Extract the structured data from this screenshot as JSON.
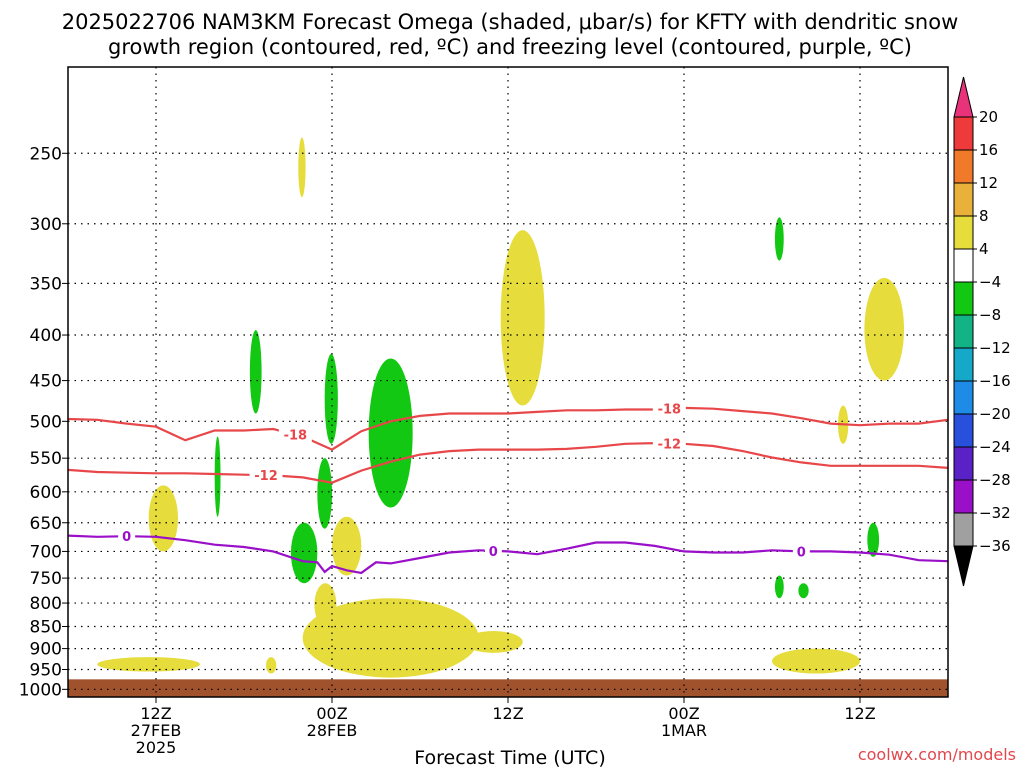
{
  "title_line1": "2025022706 NAM3KM Forecast Omega (shaded, μbar/s) for KFTY with dendritic snow",
  "title_line2": "growth region (contoured, red, ºC) and freezing level (contoured, purple, ºC)",
  "xlabel": "Forecast Time (UTC)",
  "credit": "coolwx.com/models",
  "colors": {
    "frame": "#000000",
    "grid": "#000000",
    "ground": "#a0522d",
    "dgz": "#e8474a",
    "freezing": "#9a0fc8",
    "omega_pos": "#e6dc3c",
    "omega_neg": "#12c812"
  },
  "chart_data": {
    "type": "time-height",
    "x_unit": "forecast hour from 2025-02-27 06Z",
    "xlim": [
      0,
      60
    ],
    "y_unit": "pressure (hPa)",
    "ylim": [
      1020,
      200
    ],
    "y_scale": "log",
    "grid": true,
    "yticks": [
      250,
      300,
      350,
      400,
      450,
      500,
      550,
      600,
      650,
      700,
      750,
      800,
      850,
      900,
      950,
      1000
    ],
    "xticks": [
      {
        "x": 6,
        "lines": [
          "12Z",
          "27FEB",
          "2025"
        ]
      },
      {
        "x": 18,
        "lines": [
          "00Z",
          "28FEB"
        ]
      },
      {
        "x": 30,
        "lines": [
          "12Z"
        ]
      },
      {
        "x": 42,
        "lines": [
          "00Z",
          "1MAR"
        ]
      },
      {
        "x": 54,
        "lines": [
          "12Z"
        ]
      }
    ],
    "colorbar": {
      "unit": "μbar/s",
      "labels": [
        "20",
        "16",
        "12",
        "8",
        "4",
        "−4",
        "−8",
        "−12",
        "−16",
        "−20",
        "−24",
        "−28",
        "−32",
        "−36"
      ],
      "colors": [
        "#e8337a",
        "#ee3a3a",
        "#f07a2a",
        "#e9b13a",
        "#e6dc3c",
        "#ffffff",
        "#12c812",
        "#12b486",
        "#16a8c8",
        "#1e8ce6",
        "#2850dc",
        "#5a22c6",
        "#9a0fc8",
        "#a0a0a0",
        "#000000"
      ]
    },
    "series": [
      {
        "name": "-18",
        "kind": "dgz",
        "x": [
          0,
          2,
          4,
          6,
          8,
          10,
          12,
          14,
          16,
          18,
          20,
          22,
          24,
          26,
          28,
          30,
          32,
          34,
          36,
          38,
          40,
          42,
          44,
          46,
          48,
          50,
          52,
          54,
          56,
          58,
          60
        ],
        "y": [
          497,
          498,
          503,
          507,
          525,
          512,
          512,
          510,
          520,
          538,
          513,
          500,
          493,
          490,
          490,
          490,
          488,
          486,
          486,
          485,
          485,
          483,
          484,
          487,
          490,
          496,
          503,
          505,
          503,
          503,
          498
        ],
        "labels_at": [
          15.5,
          41
        ]
      },
      {
        "name": "-12",
        "kind": "dgz",
        "x": [
          0,
          2,
          4,
          6,
          8,
          10,
          12,
          14,
          16,
          18,
          20,
          22,
          24,
          26,
          28,
          30,
          32,
          34,
          36,
          38,
          40,
          42,
          44,
          46,
          48,
          50,
          52,
          54,
          56,
          58,
          60
        ],
        "y": [
          567,
          570,
          571,
          572,
          572,
          573,
          574,
          575,
          578,
          586,
          568,
          555,
          545,
          540,
          538,
          538,
          538,
          537,
          534,
          530,
          529,
          530,
          533,
          540,
          549,
          556,
          561,
          561,
          561,
          561,
          564
        ],
        "labels_at": [
          13.5,
          41
        ]
      },
      {
        "name": "0",
        "kind": "freezing",
        "x": [
          0,
          2,
          4,
          6,
          8,
          10,
          12,
          14,
          16,
          17,
          17.5,
          18,
          19,
          20,
          21,
          22,
          24,
          26,
          28,
          30,
          32,
          34,
          36,
          38,
          40,
          42,
          44,
          46,
          48,
          50,
          52,
          54,
          56,
          58,
          60
        ],
        "y": [
          672,
          674,
          673,
          674,
          680,
          688,
          692,
          700,
          718,
          720,
          738,
          727,
          735,
          740,
          720,
          722,
          712,
          702,
          698,
          700,
          705,
          695,
          684,
          684,
          690,
          700,
          702,
          702,
          698,
          700,
          700,
          702,
          706,
          716,
          718
        ],
        "labels_at": [
          4,
          29,
          50
        ]
      }
    ],
    "omega_regions": [
      {
        "sign": "positive",
        "range": "4 to 8",
        "x": [
          15.7,
          16.2
        ],
        "p": [
          240,
          280
        ]
      },
      {
        "sign": "positive",
        "range": "4 to 8",
        "x": [
          5.5,
          7.5
        ],
        "p": [
          590,
          700
        ]
      },
      {
        "sign": "positive",
        "range": "4 to 8",
        "x": [
          2,
          9
        ],
        "p": [
          920,
          955
        ]
      },
      {
        "sign": "positive",
        "range": "4 to 8",
        "x": [
          13.5,
          14.2
        ],
        "p": [
          920,
          960
        ]
      },
      {
        "sign": "positive",
        "range": "4 to 8",
        "x": [
          18,
          20
        ],
        "p": [
          640,
          745
        ]
      },
      {
        "sign": "positive",
        "range": "4 to 8",
        "x": [
          16.8,
          18.3
        ],
        "p": [
          760,
          850
        ]
      },
      {
        "sign": "positive",
        "range": "4 to 8",
        "x": [
          16,
          28
        ],
        "p": [
          790,
          970
        ]
      },
      {
        "sign": "positive",
        "range": "4 to 8",
        "x": [
          27,
          31
        ],
        "p": [
          860,
          910
        ]
      },
      {
        "sign": "positive",
        "range": "4 to 8",
        "x": [
          29.5,
          32.5
        ],
        "p": [
          305,
          480
        ]
      },
      {
        "sign": "positive",
        "range": "4 to 8",
        "x": [
          48,
          54
        ],
        "p": [
          900,
          960
        ]
      },
      {
        "sign": "positive",
        "range": "4 to 8",
        "x": [
          52.5,
          53.2
        ],
        "p": [
          480,
          530
        ]
      },
      {
        "sign": "positive",
        "range": "4 to 8",
        "x": [
          54.3,
          57
        ],
        "p": [
          345,
          450
        ]
      },
      {
        "sign": "negative",
        "range": "-4 to -8",
        "x": [
          12.4,
          13.2
        ],
        "p": [
          395,
          490
        ]
      },
      {
        "sign": "negative",
        "range": "-4 to -8",
        "x": [
          10,
          10.4
        ],
        "p": [
          520,
          640
        ]
      },
      {
        "sign": "negative",
        "range": "-4 to -8",
        "x": [
          15.2,
          17
        ],
        "p": [
          650,
          760
        ]
      },
      {
        "sign": "negative",
        "range": "-4 to -8",
        "x": [
          17,
          18
        ],
        "p": [
          550,
          660
        ]
      },
      {
        "sign": "negative",
        "range": "-4 to -8",
        "x": [
          17.5,
          18.4
        ],
        "p": [
          420,
          530
        ]
      },
      {
        "sign": "negative",
        "range": "-4 to -8",
        "x": [
          20.5,
          23.5
        ],
        "p": [
          425,
          625
        ]
      },
      {
        "sign": "negative",
        "range": "-4 to -8",
        "x": [
          48.2,
          48.8
        ],
        "p": [
          295,
          330
        ]
      },
      {
        "sign": "negative",
        "range": "-4 to -8",
        "x": [
          48.2,
          48.8
        ],
        "p": [
          745,
          790
        ]
      },
      {
        "sign": "negative",
        "range": "-4 to -8",
        "x": [
          49.8,
          50.5
        ],
        "p": [
          760,
          790
        ]
      },
      {
        "sign": "negative",
        "range": "-4 to -8",
        "x": [
          54.5,
          55.3
        ],
        "p": [
          650,
          710
        ]
      }
    ]
  }
}
